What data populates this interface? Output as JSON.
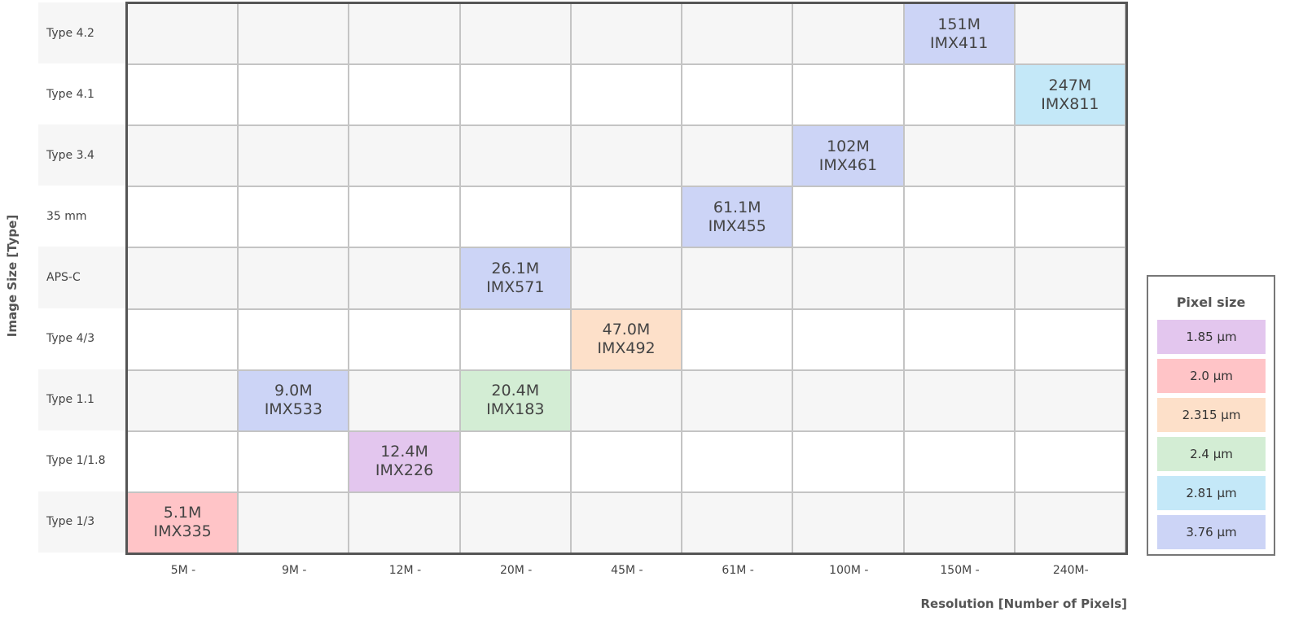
{
  "chart_data": {
    "type": "table",
    "ylabel": "Image Size [Type]",
    "xlabel": "Resolution [Number of Pixels]",
    "row_labels": [
      "Type 4.2",
      "Type 4.1",
      "Type 3.4",
      "35 mm",
      "APS-C",
      "Type 4/3",
      "Type 1.1",
      "Type 1/1.8",
      "Type 1/3"
    ],
    "column_labels": [
      "5M -",
      "9M -",
      "12M -",
      "20M -",
      "45M -",
      "61M -",
      "100M -",
      "150M -",
      "240M-"
    ],
    "cells": [
      {
        "row": 0,
        "col": 7,
        "resolution": "151M",
        "model": "IMX411",
        "pixel_size": "3.76 µm"
      },
      {
        "row": 1,
        "col": 8,
        "resolution": "247M",
        "model": "IMX811",
        "pixel_size": "2.81 µm"
      },
      {
        "row": 2,
        "col": 6,
        "resolution": "102M",
        "model": "IMX461",
        "pixel_size": "3.76 µm"
      },
      {
        "row": 3,
        "col": 5,
        "resolution": "61.1M",
        "model": "IMX455",
        "pixel_size": "3.76 µm"
      },
      {
        "row": 4,
        "col": 3,
        "resolution": "26.1M",
        "model": "IMX571",
        "pixel_size": "3.76 µm"
      },
      {
        "row": 5,
        "col": 4,
        "resolution": "47.0M",
        "model": "IMX492",
        "pixel_size": "2.315 µm"
      },
      {
        "row": 6,
        "col": 1,
        "resolution": "9.0M",
        "model": "IMX533",
        "pixel_size": "3.76 µm"
      },
      {
        "row": 6,
        "col": 3,
        "resolution": "20.4M",
        "model": "IMX183",
        "pixel_size": "2.4 µm"
      },
      {
        "row": 7,
        "col": 2,
        "resolution": "12.4M",
        "model": "IMX226",
        "pixel_size": "1.85 µm"
      },
      {
        "row": 8,
        "col": 0,
        "resolution": "5.1M",
        "model": "IMX335",
        "pixel_size": "2.0 µm"
      }
    ],
    "legend": {
      "title": "Pixel size",
      "placement": "right",
      "items": [
        {
          "label": "1.85 µm",
          "color": "#e3c6ee"
        },
        {
          "label": "2.0 µm",
          "color": "#ffc4c7"
        },
        {
          "label": "2.315 µm",
          "color": "#fde0c9"
        },
        {
          "label": "2.4 µm",
          "color": "#d3edd4"
        },
        {
          "label": "2.81 µm",
          "color": "#c4e8f8"
        },
        {
          "label": "3.76 µm",
          "color": "#ccd4f6"
        }
      ]
    },
    "row_colors": {
      "even": "#f6f6f6",
      "odd": "#ffffff"
    }
  }
}
